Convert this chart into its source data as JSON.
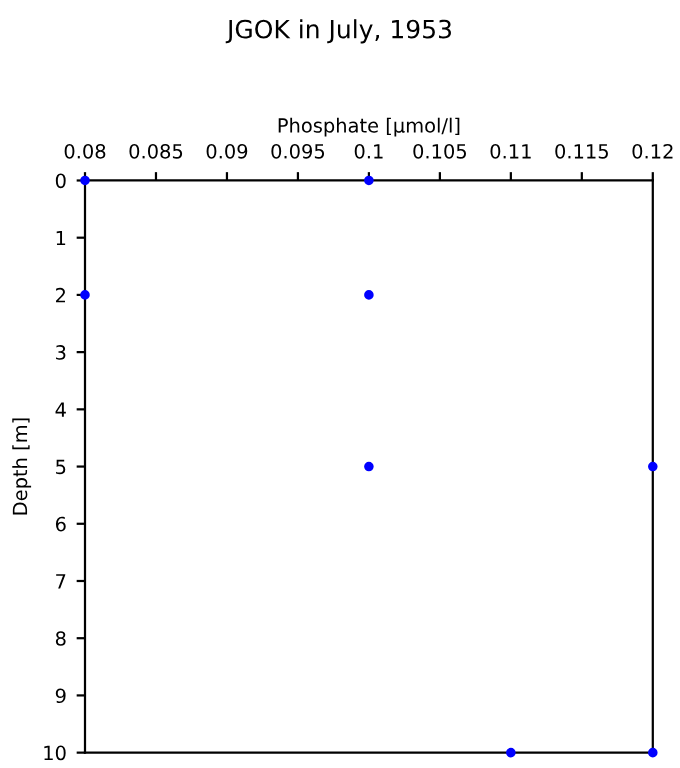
{
  "chart_data": {
    "type": "scatter",
    "title": "JGOK in July, 1953",
    "xlabel": "Phosphate [µmol/l]",
    "ylabel": "Depth [m]",
    "series": [
      {
        "color": "#0000ff",
        "x": [
          0.08,
          0.1,
          0.08,
          0.1,
          0.1,
          0.12,
          0.11,
          0.12
        ],
        "values": [
          0,
          0,
          2,
          2,
          5,
          5,
          10,
          10
        ]
      }
    ],
    "xlim": [
      0.08,
      0.12
    ],
    "xticks": [
      0.08,
      0.085,
      0.09,
      0.095,
      0.1,
      0.105,
      0.11,
      0.115,
      0.12
    ],
    "ylim": [
      10,
      0
    ],
    "yticks": [
      0,
      1,
      2,
      3,
      4,
      5,
      6,
      7,
      8,
      9,
      10
    ],
    "marker": "circle",
    "grid": false,
    "legend": false
  }
}
